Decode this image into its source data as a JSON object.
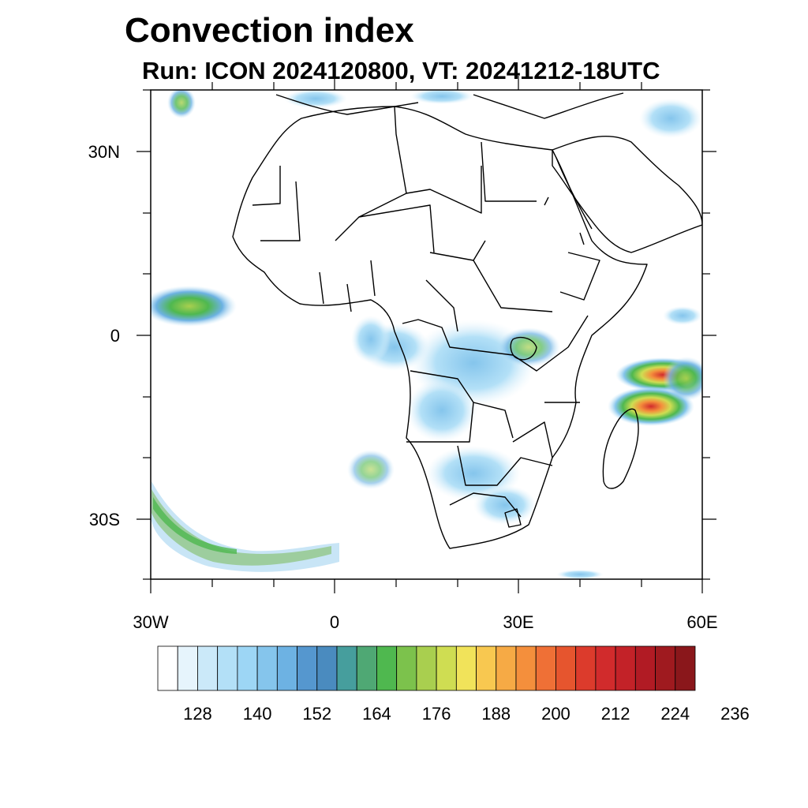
{
  "title": "Convection index",
  "subtitle": "Run: ICON 2024120800,  VT: 20241212-18UTC",
  "axes": {
    "lat_labels": [
      "30N",
      "0",
      "30S"
    ],
    "lon_labels": [
      "30W",
      "0",
      "30E",
      "60E"
    ],
    "lat_range": [
      -40,
      40
    ],
    "lon_range": [
      -30,
      60
    ]
  },
  "colorbar": {
    "labels": [
      "128",
      "140",
      "152",
      "164",
      "176",
      "188",
      "200",
      "212",
      "224",
      "236"
    ],
    "colors": [
      "#ffffff",
      "#e6f4fc",
      "#cbe9f9",
      "#b3e0f7",
      "#9dd6f5",
      "#85c5ec",
      "#6db2e3",
      "#5597cf",
      "#4a8bbf",
      "#469e9d",
      "#4fa874",
      "#4fb84f",
      "#7cc24c",
      "#a9cf4f",
      "#cfdd52",
      "#f1e35a",
      "#f8c850",
      "#f6aa45",
      "#f48f3c",
      "#ef7036",
      "#e6552e",
      "#dc3b2c",
      "#d12b2c",
      "#c32228",
      "#b11b24",
      "#9f1a1f",
      "#8a171b"
    ]
  },
  "chart_data": {
    "type": "heatmap",
    "title": "Convection index",
    "subtitle": "Run: ICON 2024120800,  VT: 20241212-18UTC",
    "x_ticks": [
      "30W",
      "0",
      "30E",
      "60E"
    ],
    "y_ticks": [
      "30N",
      "0",
      "30S"
    ],
    "xlim": [
      -30,
      60
    ],
    "ylim": [
      -40,
      40
    ],
    "levels_labeled": [
      128,
      140,
      152,
      164,
      176,
      188,
      200,
      212,
      224,
      236
    ]
  }
}
